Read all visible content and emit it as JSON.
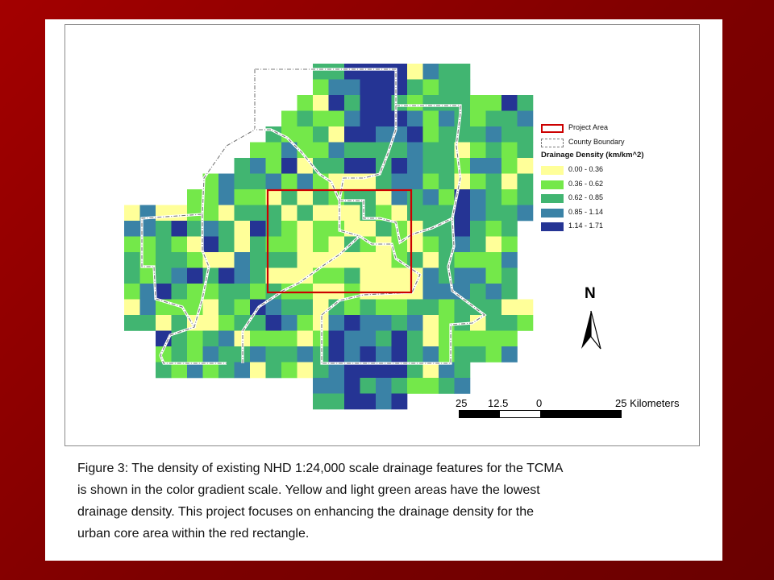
{
  "map": {
    "legend": {
      "project_area": "Project Area",
      "county_boundary": "County Boundary",
      "title": "Drainage Density (km/km^2)",
      "classes": [
        {
          "label": "0.00 - 0.36",
          "color": "#ffff99"
        },
        {
          "label": "0.36 - 0.62",
          "color": "#74e84a"
        },
        {
          "label": "0.62 - 0.85",
          "color": "#41b571"
        },
        {
          "label": "0.85 - 1.14",
          "color": "#3a82a6"
        },
        {
          "label": "1.14 - 1.71",
          "color": "#253494"
        }
      ]
    },
    "north_arrow": {
      "label": "N"
    },
    "scale": {
      "ticks": [
        "25",
        "12.5",
        "0",
        "25 Kilometers"
      ]
    },
    "project_area_color": "#cc0000",
    "county_boundary_color": "#7a7a7a"
  },
  "caption": {
    "lines": [
      "Figure 3: The density of existing NHD 1:24,000 scale drainage features for the TCMA",
      "is shown in the color gradient scale.  Yellow and light green areas have the lowest",
      "drainage density. This project focuses on enhancing the drainage density for the",
      "urban core area within the red rectangle."
    ]
  }
}
